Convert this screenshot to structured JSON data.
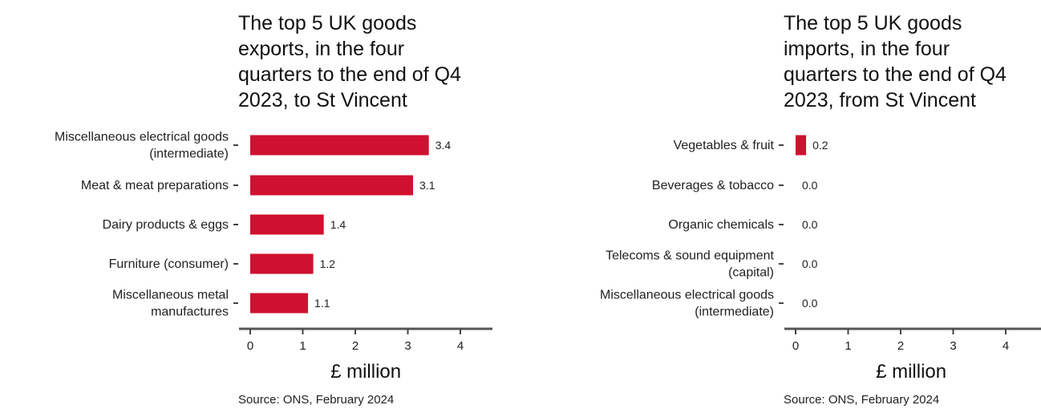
{
  "chart_data": [
    {
      "type": "bar",
      "orientation": "horizontal",
      "title_lines": [
        "The top 5 UK goods",
        "exports, in the four",
        "quarters to the end of Q4",
        "2023, to St Vincent"
      ],
      "categories": [
        [
          "Miscellaneous electrical goods",
          "(intermediate)"
        ],
        [
          "Meat & meat preparations"
        ],
        [
          "Dairy products & eggs"
        ],
        [
          "Furniture (consumer)"
        ],
        [
          "Miscellaneous metal",
          "manufactures"
        ]
      ],
      "values": [
        3.4,
        3.1,
        1.4,
        1.2,
        1.1
      ],
      "value_labels": [
        "3.4",
        "3.1",
        "1.4",
        "1.2",
        "1.1"
      ],
      "xlabel": "£ million",
      "xticks": [
        "0",
        "1",
        "2",
        "3",
        "4"
      ],
      "xlim": [
        0,
        4.6
      ],
      "source": "Source: ONS, February 2024",
      "bar_color": "#d0102f",
      "grid": false
    },
    {
      "type": "bar",
      "orientation": "horizontal",
      "title_lines": [
        "The top 5 UK goods",
        "imports, in the four",
        "quarters to the end of Q4",
        "2023, from St Vincent"
      ],
      "categories": [
        [
          "Vegetables & fruit"
        ],
        [
          "Beverages & tobacco"
        ],
        [
          "Organic chemicals"
        ],
        [
          "Telecoms & sound equipment",
          "(capital)"
        ],
        [
          "Miscellaneous electrical goods",
          "(intermediate)"
        ]
      ],
      "values": [
        0.2,
        0.0,
        0.0,
        0.0,
        0.0
      ],
      "value_labels": [
        "0.2",
        "0.0",
        "0.0",
        "0.0",
        "0.0"
      ],
      "xlabel": "£ million",
      "xticks": [
        "0",
        "1",
        "2",
        "3",
        "4"
      ],
      "xlim": [
        0,
        4.6
      ],
      "source": "Source: ONS, February 2024",
      "bar_color": "#d0102f",
      "grid": false
    }
  ]
}
